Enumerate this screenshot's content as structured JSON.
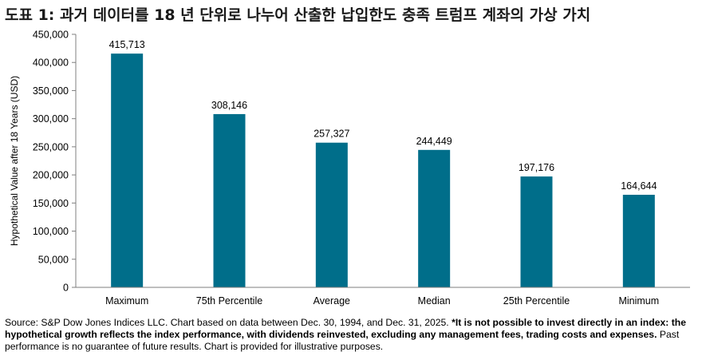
{
  "title": "도표 1: 과거 데이터를 18 년 단위로 나누어 산출한 납입한도 충족 트럼프 계좌의 가상 가치",
  "footer": {
    "source": "Source: S&P Dow Jones Indices LLC.  Chart based on data between Dec. 30, 1994, and Dec. 31, 2025.  ",
    "disclaimer_bold": "*It is not possible to invest directly in an index: the hypothetical growth reflects the index performance, with dividends reinvested, excluding any management fees, trading costs and expenses.",
    "disclaimer_tail": "  Past performance is no guarantee of future results.  Chart is provided for illustrative purposes."
  },
  "chart_data": {
    "type": "bar",
    "title": "",
    "xlabel": "",
    "ylabel": "Hypothetical Value after 18 Years (USD)",
    "categories": [
      "Maximum",
      "75th Percentile",
      "Average",
      "Median",
      "25th Percentile",
      "Minimum"
    ],
    "values": [
      415713,
      308146,
      257327,
      244449,
      197176,
      164644
    ],
    "data_labels": [
      "415,713",
      "308,146",
      "257,327",
      "244,449",
      "197,176",
      "164,644"
    ],
    "ylim": [
      0,
      450000
    ],
    "yticks": [
      0,
      50000,
      100000,
      150000,
      200000,
      250000,
      300000,
      350000,
      400000,
      450000
    ],
    "ytick_labels": [
      "0",
      "50,000",
      "100,000",
      "150,000",
      "200,000",
      "250,000",
      "300,000",
      "350,000",
      "400,000",
      "450,000"
    ],
    "grid": false,
    "legend": "none",
    "bar_color": "#006E8A",
    "axis_color": "#7f7f7f"
  }
}
